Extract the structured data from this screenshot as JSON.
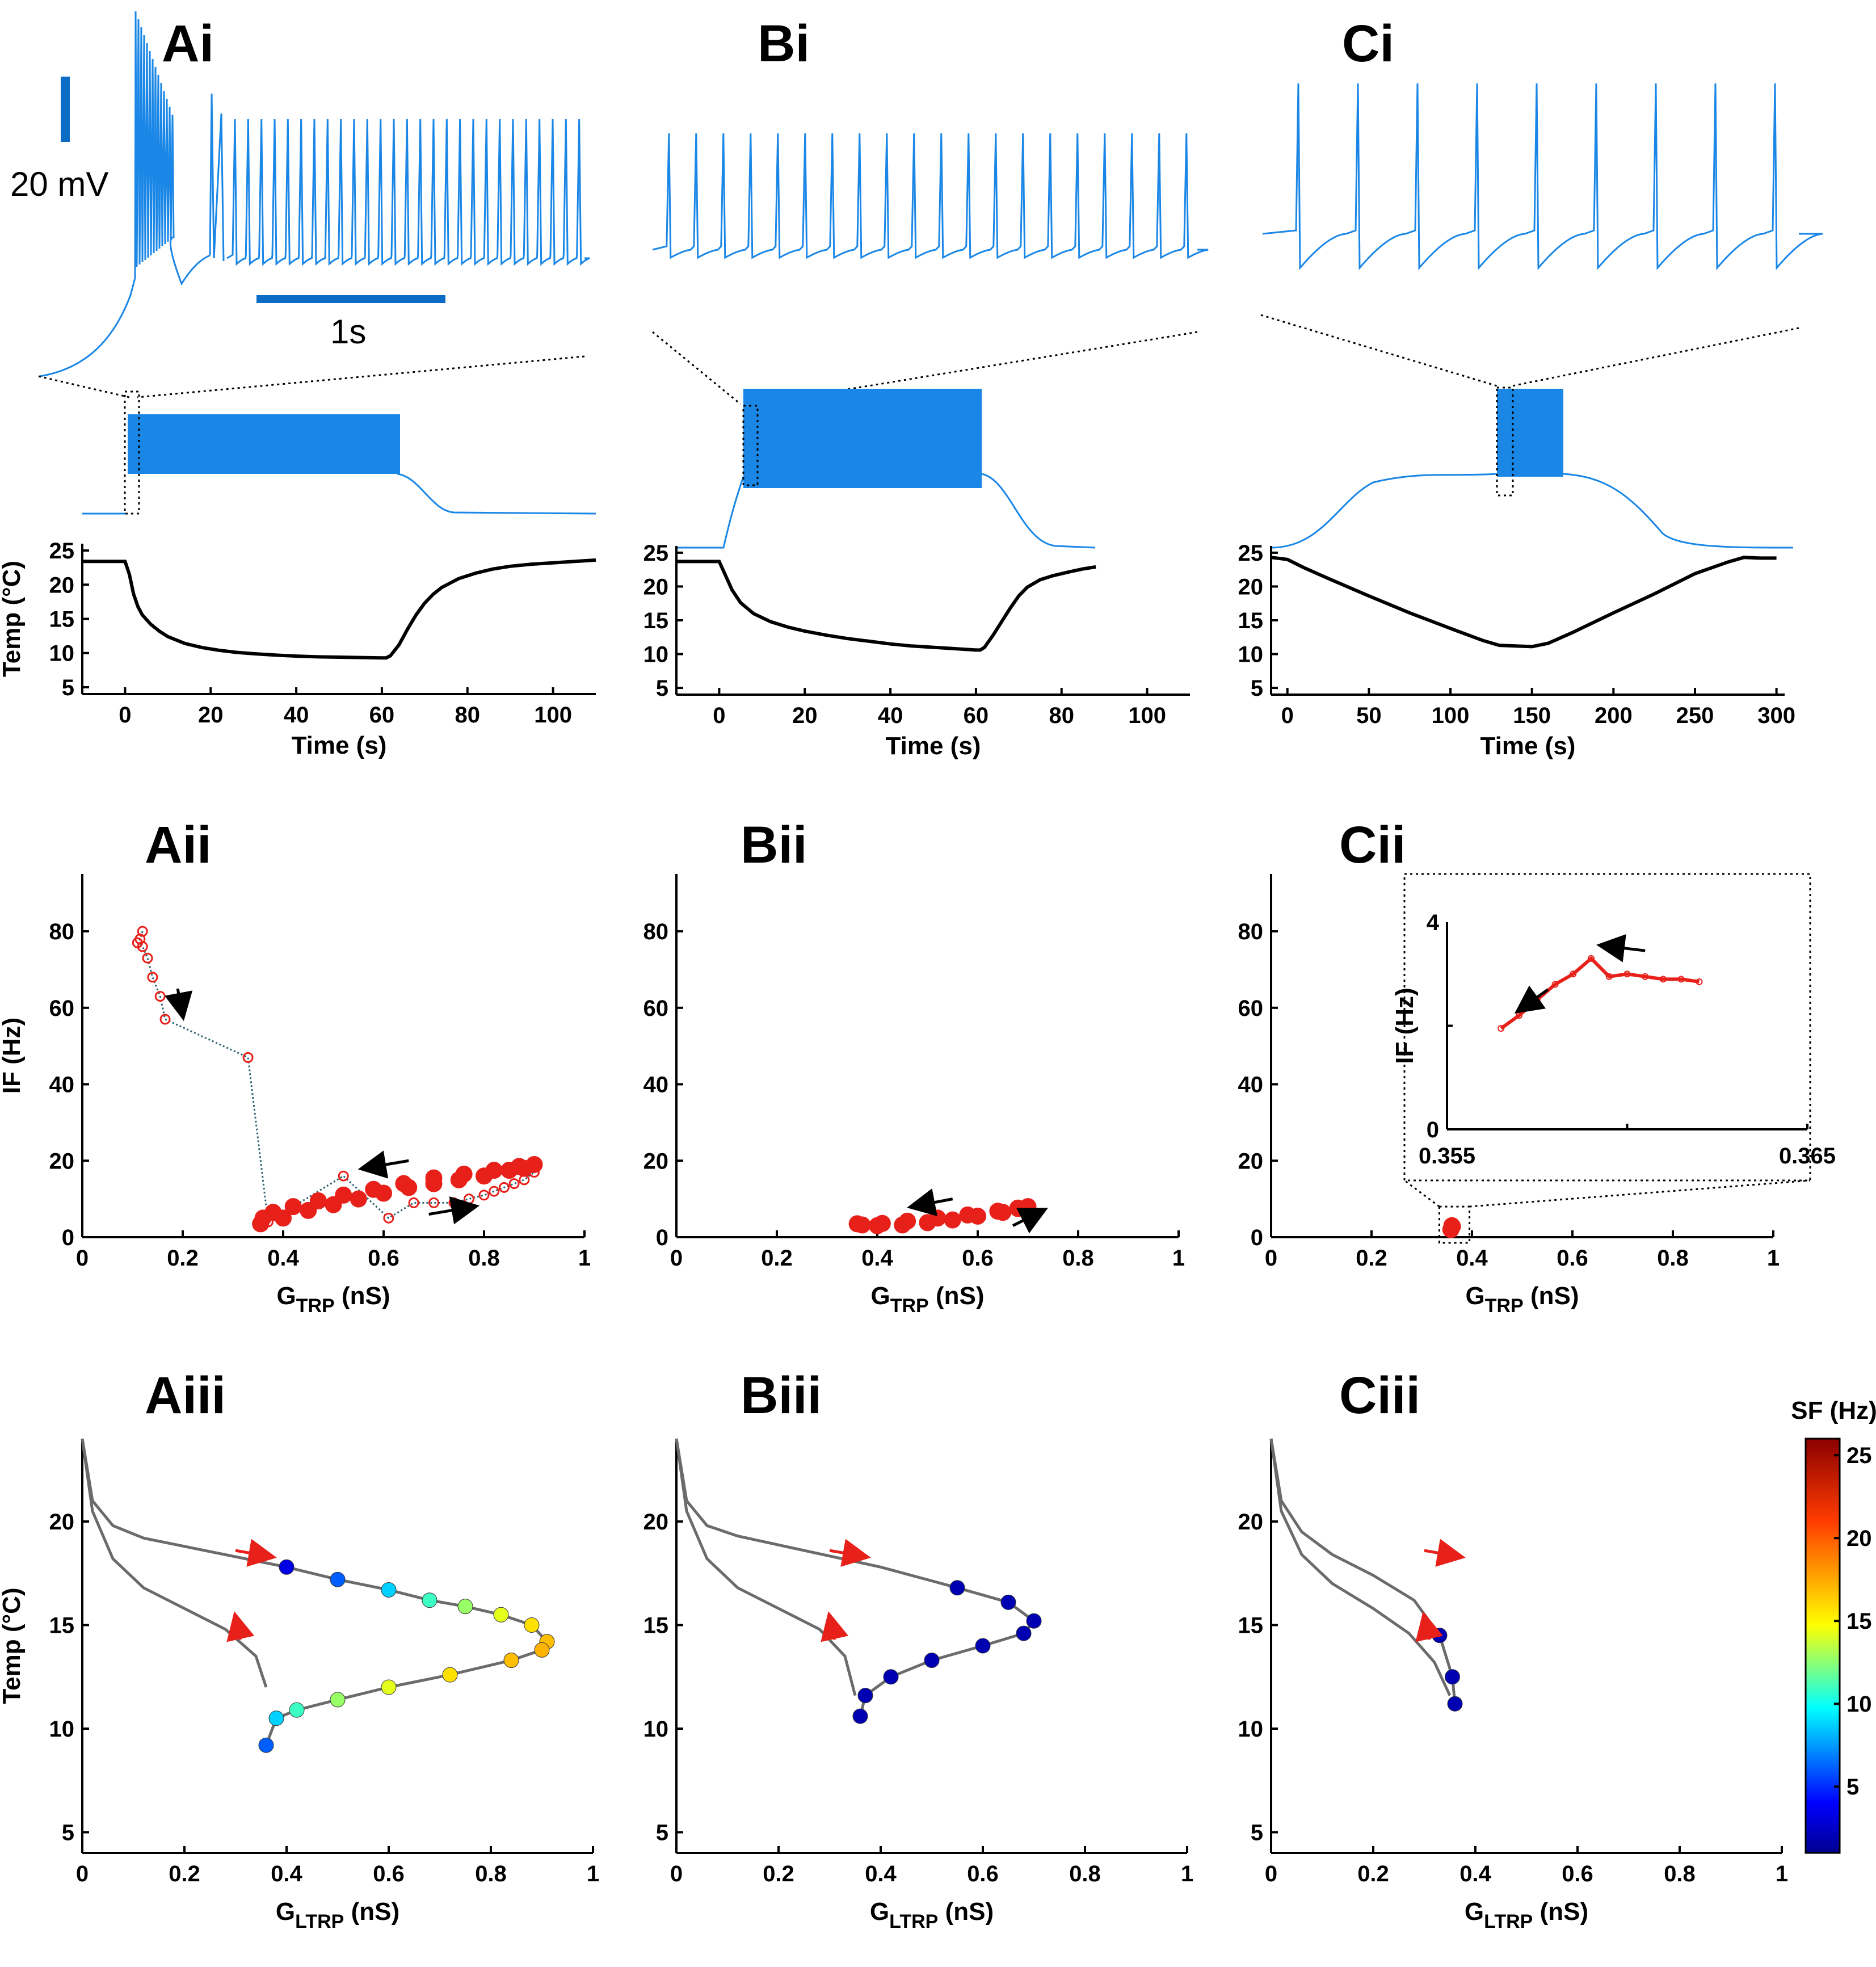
{
  "panel_labels": {
    "Ai": "Ai",
    "Bi": "Bi",
    "Ci": "Ci",
    "Aii": "Aii",
    "Bii": "Bii",
    "Cii": "Cii",
    "Aiii": "Aiii",
    "Biii": "Biii",
    "Ciii": "Ciii"
  },
  "scale_bars": {
    "voltage": "20 mV",
    "time": "1s"
  },
  "colors": {
    "trace": "#1a86e6",
    "temp": "#000000",
    "if_points": "#e8201a",
    "arrow_red": "#e8201a",
    "arrow_black": "#000000",
    "trajectory": "#6b6b6b"
  },
  "chart_data": [
    {
      "type": "line",
      "id": "Ai-temp",
      "xlabel": "Time (s)",
      "ylabel": "Temp (°C)",
      "xlim": [
        -10,
        110
      ],
      "ylim": [
        4,
        26
      ],
      "xticks": [
        0,
        20,
        40,
        60,
        80,
        100
      ],
      "yticks": [
        5,
        10,
        15,
        20,
        25
      ],
      "x": [
        -10,
        -1,
        0,
        1,
        2,
        3,
        4,
        6,
        8,
        10,
        14,
        18,
        22,
        26,
        30,
        35,
        40,
        45,
        50,
        55,
        60,
        61,
        62,
        64,
        66,
        68,
        70,
        72,
        74,
        78,
        82,
        86,
        90,
        95,
        100,
        105,
        110
      ],
      "y": [
        23.4,
        23.4,
        23.4,
        21.5,
        18.6,
        16.8,
        15.6,
        14.2,
        13.2,
        12.4,
        11.4,
        10.8,
        10.4,
        10.1,
        9.9,
        9.7,
        9.55,
        9.45,
        9.4,
        9.35,
        9.3,
        9.3,
        9.6,
        11.2,
        13.5,
        15.6,
        17.3,
        18.6,
        19.6,
        20.9,
        21.7,
        22.3,
        22.7,
        23.0,
        23.2,
        23.4,
        23.6
      ]
    },
    {
      "type": "line",
      "id": "Bi-temp",
      "xlabel": "Time (s)",
      "ylabel": "",
      "xlim": [
        -10,
        110
      ],
      "ylim": [
        4,
        26
      ],
      "xticks": [
        0,
        20,
        40,
        60,
        80,
        100
      ],
      "yticks": [
        5,
        10,
        15,
        20,
        25
      ],
      "x": [
        -10,
        -1,
        0,
        1,
        3,
        5,
        8,
        12,
        16,
        20,
        25,
        30,
        35,
        40,
        45,
        50,
        55,
        60,
        61,
        62,
        64,
        66,
        68,
        70,
        72,
        75,
        78,
        82,
        85,
        88
      ],
      "y": [
        23.7,
        23.7,
        23.7,
        22.3,
        19.5,
        17.6,
        16.0,
        14.8,
        14.0,
        13.4,
        12.8,
        12.3,
        11.9,
        11.5,
        11.2,
        11.0,
        10.8,
        10.6,
        10.6,
        11.0,
        12.8,
        14.8,
        16.8,
        18.6,
        19.9,
        21.0,
        21.6,
        22.2,
        22.6,
        22.9
      ]
    },
    {
      "type": "line",
      "id": "Ci-temp",
      "xlabel": "Time (s)",
      "ylabel": "",
      "xlim": [
        -10,
        305
      ],
      "ylim": [
        4,
        26
      ],
      "xticks": [
        0,
        50,
        100,
        150,
        200,
        250,
        300
      ],
      "yticks": [
        5,
        10,
        15,
        20,
        25
      ],
      "x": [
        -10,
        0,
        10,
        25,
        50,
        75,
        100,
        120,
        130,
        140,
        150,
        160,
        175,
        200,
        225,
        250,
        270,
        280,
        290,
        300
      ],
      "y": [
        24.3,
        24.0,
        22.8,
        21.2,
        18.6,
        16.1,
        13.8,
        12.0,
        11.3,
        11.2,
        11.1,
        11.6,
        13.2,
        16.1,
        18.9,
        21.9,
        23.6,
        24.3,
        24.2,
        24.2
      ]
    },
    {
      "type": "scatter",
      "id": "Aii",
      "xlabel": "G_TRP (nS)",
      "ylabel": "IF (Hz)",
      "xlim": [
        0,
        1
      ],
      "ylim": [
        0,
        95
      ],
      "xticks": [
        0,
        0.2,
        0.4,
        0.6,
        0.8,
        1
      ],
      "yticks": [
        0,
        20,
        40,
        60,
        80
      ],
      "series": [
        {
          "name": "initial-burst",
          "x": [
            0.12,
            0.115,
            0.11,
            0.12,
            0.13,
            0.14,
            0.155,
            0.165,
            0.33,
            0.37,
            0.52,
            0.61,
            0.66,
            0.7,
            0.74,
            0.77,
            0.8,
            0.82,
            0.84,
            0.86,
            0.88,
            0.9
          ],
          "y": [
            80,
            78,
            77,
            76,
            73,
            68,
            63,
            57,
            47,
            4,
            16,
            5,
            9,
            9,
            9,
            10,
            11,
            12,
            13,
            14,
            15,
            17
          ]
        },
        {
          "name": "steady-loop",
          "x": [
            0.355,
            0.4,
            0.45,
            0.5,
            0.55,
            0.6,
            0.65,
            0.7,
            0.75,
            0.8,
            0.85,
            0.88,
            0.9,
            0.87,
            0.82,
            0.76,
            0.7,
            0.64,
            0.58,
            0.52,
            0.47,
            0.42,
            0.38,
            0.36
          ],
          "y": [
            3.5,
            5,
            7,
            8.5,
            10,
            11.5,
            13,
            14,
            15,
            16,
            17.5,
            18,
            19,
            18.5,
            17.5,
            16.5,
            15.5,
            14,
            12.5,
            11,
            9.5,
            8,
            6.5,
            5
          ]
        }
      ]
    },
    {
      "type": "scatter",
      "id": "Bii",
      "xlabel": "G_TRP (nS)",
      "ylabel": "",
      "xlim": [
        0,
        1
      ],
      "ylim": [
        0,
        95
      ],
      "xticks": [
        0,
        0.2,
        0.4,
        0.6,
        0.8,
        1
      ],
      "yticks": [
        0,
        20,
        40,
        60,
        80
      ],
      "series": [
        {
          "name": "steady-loop",
          "x": [
            0.36,
            0.4,
            0.45,
            0.5,
            0.55,
            0.6,
            0.65,
            0.68,
            0.7,
            0.68,
            0.64,
            0.58,
            0.52,
            0.46,
            0.41,
            0.37
          ],
          "y": [
            3.5,
            3.0,
            3.2,
            3.8,
            4.5,
            5.5,
            6.5,
            7.5,
            8.0,
            7.6,
            6.8,
            5.8,
            5.0,
            4.2,
            3.6,
            3.2
          ]
        }
      ]
    },
    {
      "type": "scatter",
      "id": "Cii",
      "xlabel": "G_TRP (nS)",
      "ylabel": "",
      "xlim": [
        0,
        1
      ],
      "ylim": [
        0,
        95
      ],
      "xticks": [
        0,
        0.2,
        0.4,
        0.6,
        0.8,
        1
      ],
      "yticks": [
        0,
        20,
        40,
        60,
        80
      ],
      "series": [
        {
          "name": "cluster",
          "x": [
            0.358,
            0.36,
            0.361
          ],
          "y": [
            2.0,
            3.0,
            2.8
          ]
        }
      ],
      "inset": {
        "xlim": [
          0.355,
          0.365
        ],
        "ylim": [
          0,
          4
        ],
        "xtick_labels": [
          "0.355",
          "0.365"
        ],
        "ytick_labels": [
          "0",
          "4"
        ],
        "ylabel": "IF (Hz)",
        "x": [
          0.3565,
          0.357,
          0.3575,
          0.358,
          0.3585,
          0.359,
          0.3595,
          0.36,
          0.3605,
          0.361,
          0.3615,
          0.362
        ],
        "y": [
          1.95,
          2.2,
          2.5,
          2.8,
          3.0,
          3.3,
          2.95,
          3.0,
          2.95,
          2.9,
          2.9,
          2.85
        ]
      }
    },
    {
      "type": "heatmap",
      "id": "Aiii",
      "xlabel": "G_LTRP (nS)",
      "ylabel": "Temp (°C)",
      "xlim": [
        0,
        1
      ],
      "ylim": [
        4,
        24
      ],
      "xticks": [
        0,
        0.2,
        0.4,
        0.6,
        0.8,
        1
      ],
      "yticks": [
        5,
        10,
        15,
        20
      ],
      "colorbar": {
        "label": "SF (Hz)",
        "min": 1,
        "max": 26,
        "ticks": [
          5,
          10,
          15,
          20,
          25
        ]
      },
      "trajectory": {
        "x": [
          0,
          0.02,
          0.06,
          0.12,
          0.2,
          0.3,
          0.4,
          0.5,
          0.6,
          0.68,
          0.75,
          0.82,
          0.88,
          0.91,
          0.9,
          0.84,
          0.72,
          0.6,
          0.5,
          0.42,
          0.38,
          0.36
        ],
        "y": [
          24,
          21,
          19.8,
          19.2,
          18.8,
          18.3,
          17.8,
          17.2,
          16.7,
          16.2,
          15.9,
          15.5,
          15.0,
          14.2,
          13.8,
          13.3,
          12.6,
          12.0,
          11.4,
          10.9,
          10.5,
          9.2
        ]
      },
      "return_path": {
        "x": [
          0,
          0.02,
          0.06,
          0.12,
          0.2,
          0.28,
          0.34,
          0.36
        ],
        "y": [
          24,
          20.5,
          18.2,
          16.8,
          15.8,
          14.8,
          13.5,
          12.0
        ]
      }
    },
    {
      "type": "heatmap",
      "id": "Biii",
      "xlabel": "G_LTRP (nS)",
      "ylabel": "",
      "xlim": [
        0,
        1
      ],
      "ylim": [
        4,
        24
      ],
      "xticks": [
        0,
        0.2,
        0.4,
        0.6,
        0.8,
        1
      ],
      "yticks": [
        5,
        10,
        15,
        20
      ],
      "trajectory": {
        "x": [
          0,
          0.02,
          0.06,
          0.12,
          0.25,
          0.4,
          0.55,
          0.65,
          0.7,
          0.68,
          0.6,
          0.5,
          0.42,
          0.37,
          0.36
        ],
        "y": [
          24,
          21,
          19.8,
          19.3,
          18.6,
          17.8,
          16.8,
          16.1,
          15.2,
          14.6,
          14.0,
          13.3,
          12.5,
          11.6,
          10.6
        ]
      },
      "return_path": {
        "x": [
          0,
          0.02,
          0.06,
          0.12,
          0.2,
          0.28,
          0.33,
          0.35
        ],
        "y": [
          24,
          20.5,
          18.2,
          16.8,
          15.8,
          14.8,
          13.5,
          11.6
        ]
      }
    },
    {
      "type": "heatmap",
      "id": "Ciii",
      "xlabel": "G_LTRP (nS)",
      "ylabel": "",
      "xlim": [
        0,
        1
      ],
      "ylim": [
        4,
        24
      ],
      "xticks": [
        0,
        0.2,
        0.4,
        0.6,
        0.8,
        1
      ],
      "yticks": [
        5,
        10,
        15,
        20
      ],
      "trajectory": {
        "x": [
          0,
          0.02,
          0.06,
          0.12,
          0.2,
          0.28,
          0.33,
          0.355,
          0.36
        ],
        "y": [
          24,
          21,
          19.5,
          18.4,
          17.4,
          16.2,
          14.5,
          12.5,
          11.2
        ]
      },
      "return_path": {
        "x": [
          0,
          0.02,
          0.06,
          0.12,
          0.2,
          0.27,
          0.32,
          0.35
        ],
        "y": [
          24,
          20.5,
          18.4,
          17.0,
          15.8,
          14.6,
          13.2,
          11.6
        ]
      }
    }
  ]
}
